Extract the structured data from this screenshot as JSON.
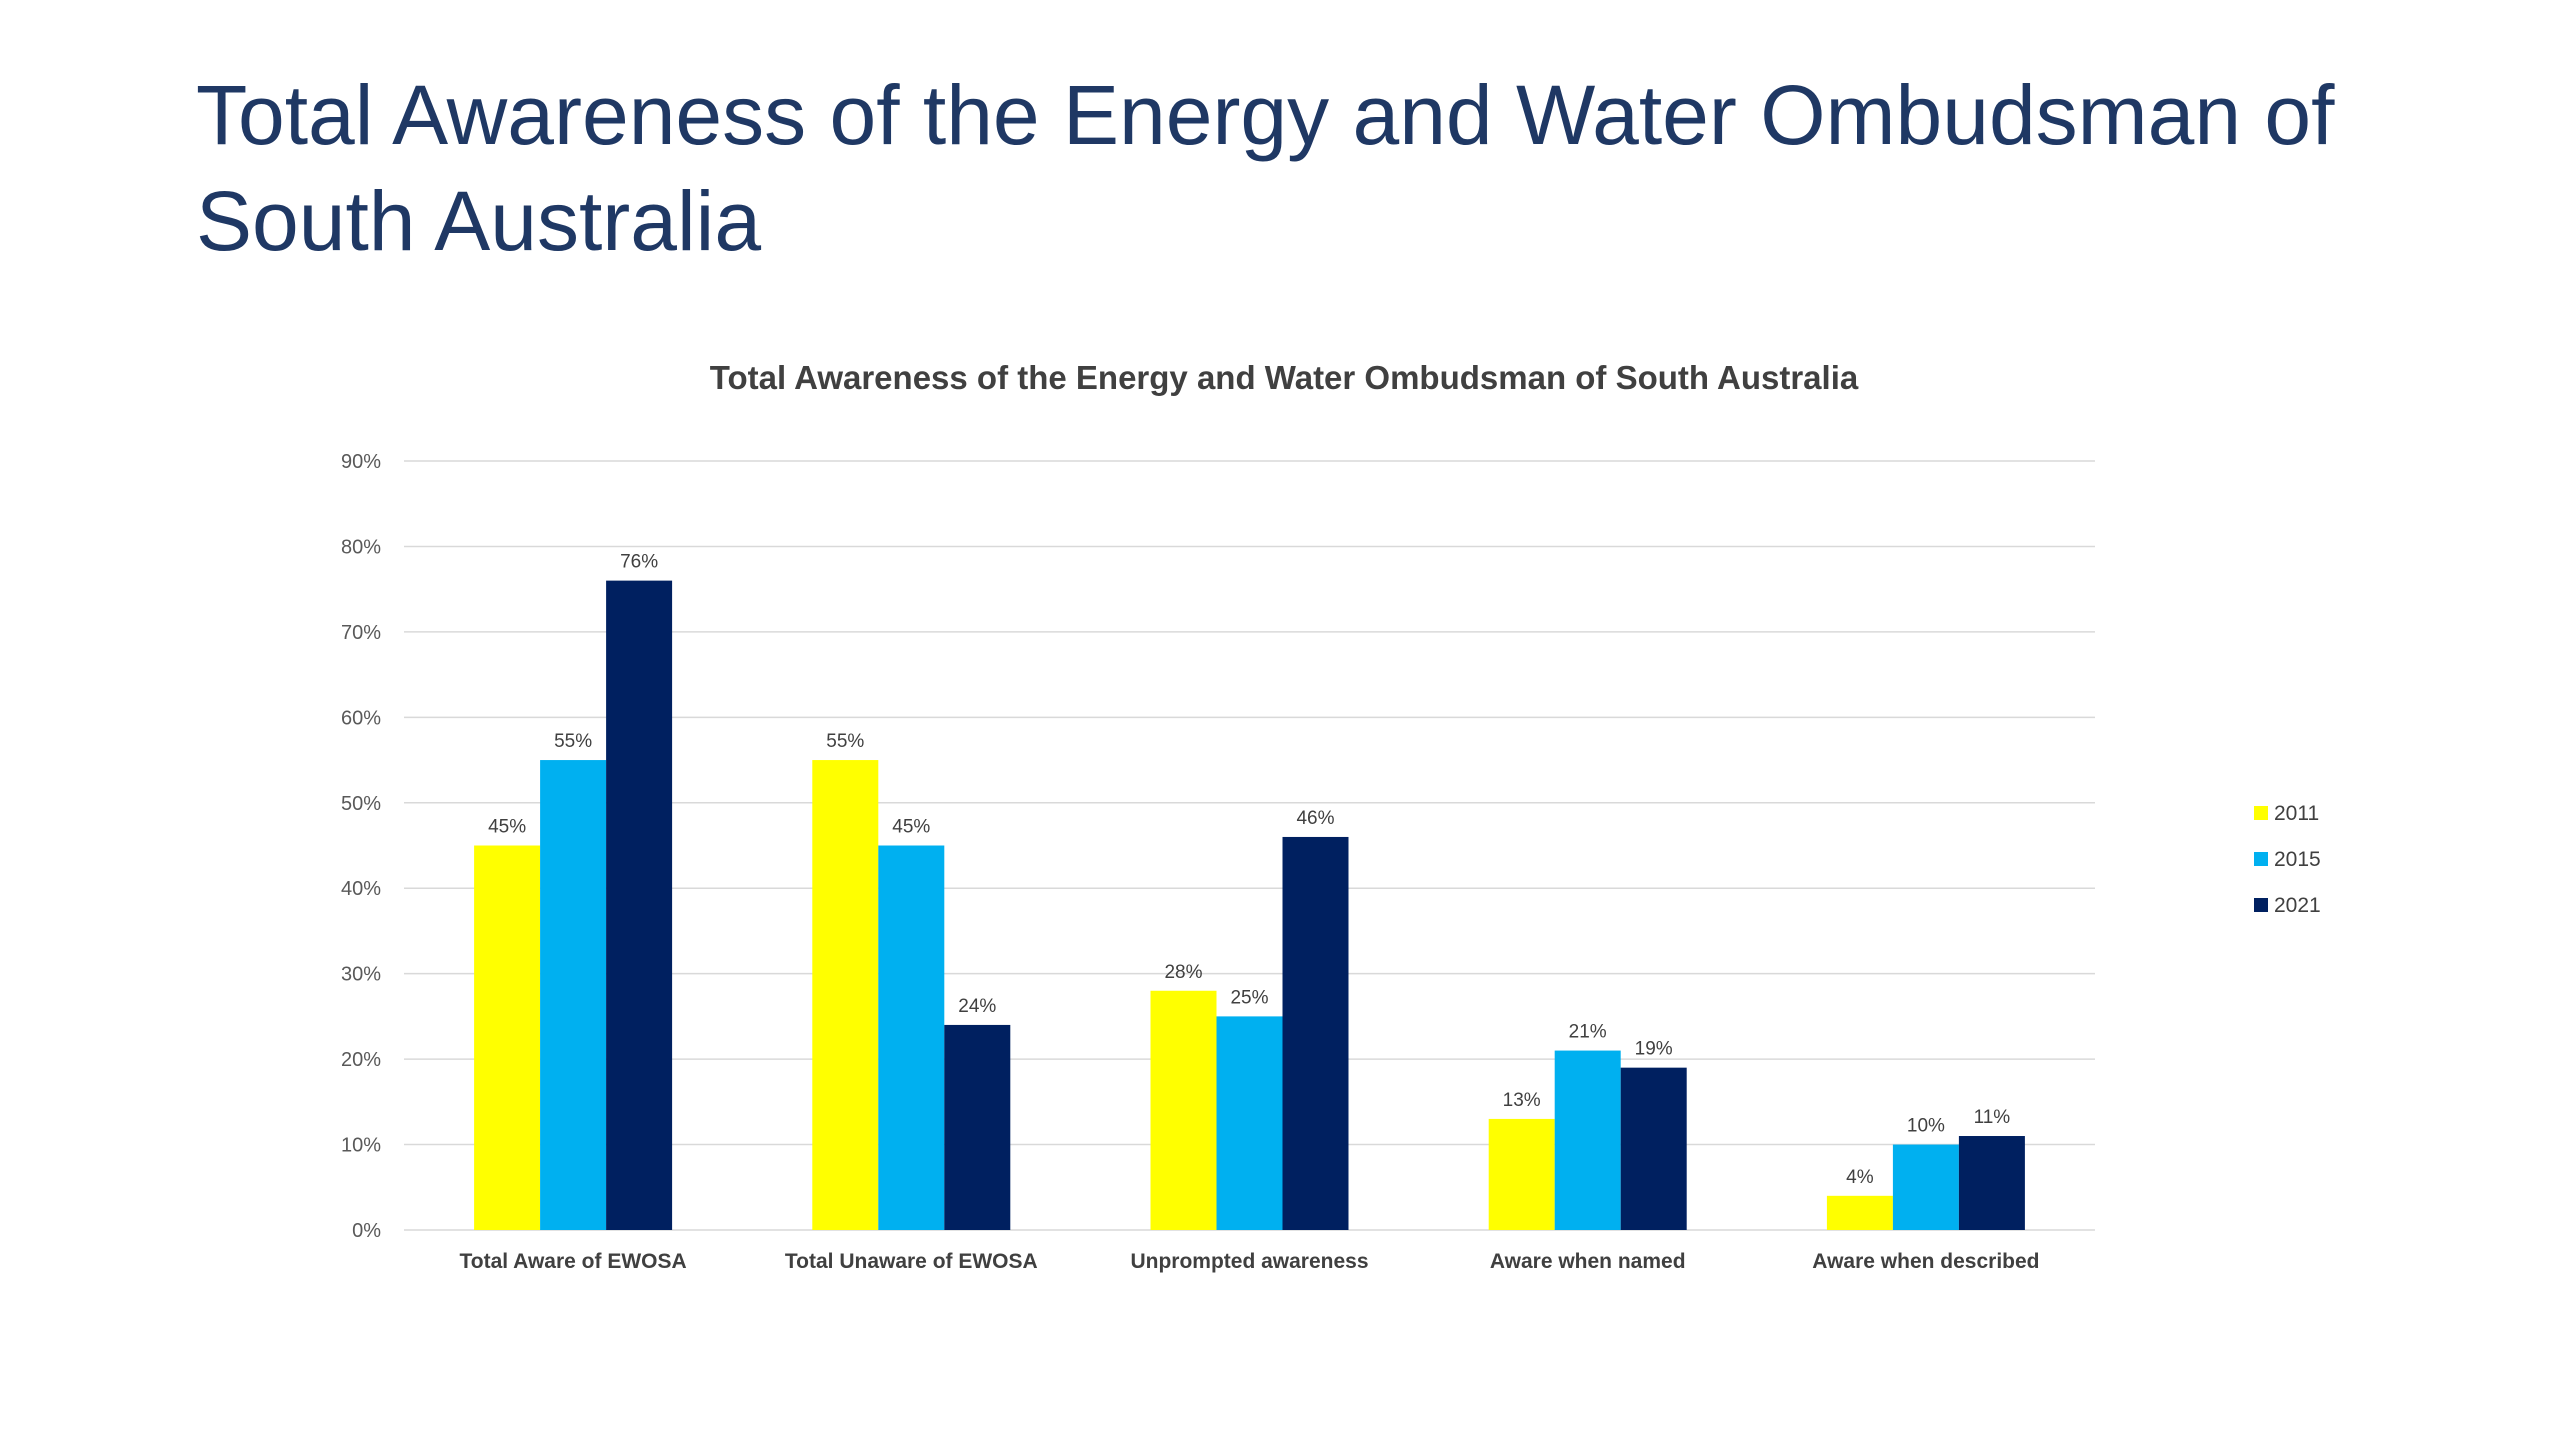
{
  "slide": {
    "title": "Total Awareness of the Energy and Water Ombudsman of South Australia"
  },
  "chart_data": {
    "type": "bar",
    "title": "Total Awareness of the Energy and Water Ombudsman of South Australia",
    "xlabel": "",
    "ylabel": "",
    "ylim": [
      0,
      90
    ],
    "y_ticks": [
      "0%",
      "10%",
      "20%",
      "30%",
      "40%",
      "50%",
      "60%",
      "70%",
      "80%",
      "90%"
    ],
    "y_unit": "%",
    "grid": true,
    "legend_position": "right",
    "categories": [
      "Total Aware of EWOSA",
      "Total Unaware of EWOSA",
      "Unprompted awareness",
      "Aware when named",
      "Aware when described"
    ],
    "series": [
      {
        "name": "2011",
        "color": "#ffff00",
        "values": [
          45,
          55,
          28,
          13,
          4
        ]
      },
      {
        "name": "2015",
        "color": "#00b0f0",
        "values": [
          55,
          45,
          25,
          21,
          10
        ]
      },
      {
        "name": "2021",
        "color": "#002060",
        "values": [
          76,
          24,
          46,
          19,
          11
        ]
      }
    ]
  }
}
